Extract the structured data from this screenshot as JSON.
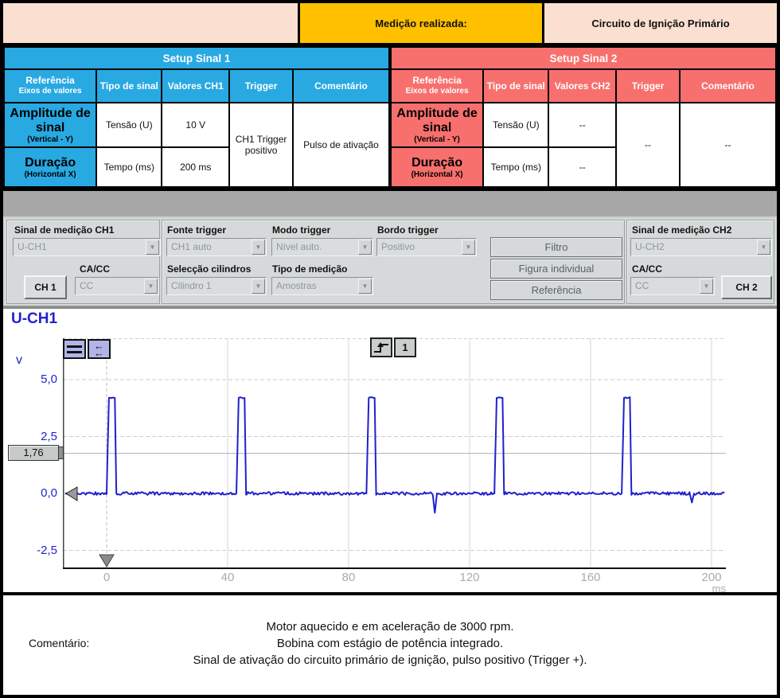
{
  "header": {
    "measurement_label": "Medição realizada:",
    "measurement_value": "Circuito de Ignição Primário"
  },
  "setup_tables": [
    {
      "title": "Setup Sinal 1",
      "col_ref": "Referência",
      "col_ref_sub": "Eixos de valores",
      "col_tipo": "Tipo de sinal",
      "col_valores": "Valores CH1",
      "col_trigger": "Trigger",
      "col_comment": "Comentário",
      "row1_ref": "Amplitude de sinal",
      "row1_ref_sub": "(Vertical - Y)",
      "row1_tipo": "Tensão (U)",
      "row1_valor": "10 V",
      "row2_ref": "Duração",
      "row2_ref_sub": "(Horizontal X)",
      "row2_tipo": "Tempo (ms)",
      "row2_valor": "200 ms",
      "trigger_value": "CH1 Trigger positivo",
      "comment_value": "Pulso de ativação"
    },
    {
      "title": "Setup Sinal 2",
      "col_ref": "Referência",
      "col_ref_sub": "Eixos de valores",
      "col_tipo": "Tipo de sinal",
      "col_valores": "Valores CH2",
      "col_trigger": "Trigger",
      "col_comment": "Comentário",
      "row1_ref": "Amplitude de sinal",
      "row1_ref_sub": "(Vertical - Y)",
      "row1_tipo": "Tensão (U)",
      "row1_valor": "--",
      "row2_ref": "Duração",
      "row2_ref_sub": "(Horizontal X)",
      "row2_tipo": "Tempo (ms)",
      "row2_valor": "--",
      "trigger_value": "--",
      "comment_value": "--"
    }
  ],
  "controls": {
    "ch1_label": "Sinal de medição CH1",
    "ch1_value": "U-CH1",
    "fonte_label": "Fonte trigger",
    "fonte_value": "CH1 auto",
    "modo_label": "Modo trigger",
    "modo_value": "Nível auto.",
    "bordo_label": "Bordo trigger",
    "bordo_value": "Positivo",
    "cacc1_label": "CA/CC",
    "cacc1_value": "CC",
    "ch1_button": "CH 1",
    "cilindros_label": "Selecção cilindros",
    "cilindros_value": "Cilindro 1",
    "medicao_label": "Tipo de medição",
    "medicao_value": "Amostras",
    "filtro_button": "Filtro",
    "figura_button": "Figura individual",
    "referencia_button": "Referência",
    "ch2_label": "Sinal de medição CH2",
    "ch2_value": "U-CH2",
    "cacc2_label": "CA/CC",
    "cacc2_value": "CC",
    "ch2_button": "CH 2"
  },
  "scope": {
    "title": "U-CH1",
    "y_unit": "v",
    "x_unit": "ms",
    "trigger_value": "1,76",
    "trigger_channel": "1"
  },
  "chart_data": {
    "type": "line",
    "title": "U-CH1",
    "xlabel": "ms",
    "ylabel": "v",
    "xlim": [
      -14.5,
      204.7
    ],
    "ylim": [
      -3.3,
      6.8
    ],
    "x_ticks": [
      0,
      40,
      80,
      120,
      160,
      200
    ],
    "x_tick_labels": [
      "0",
      "40",
      "80",
      "120",
      "160",
      "200"
    ],
    "y_ticks": [
      5.0,
      2.5,
      0.0,
      -2.5
    ],
    "y_tick_labels": [
      "5,0",
      "2,5",
      "0,0",
      "-2,5"
    ],
    "grid": true,
    "trigger_level": 1.76,
    "trigger_time": 0,
    "baseline_v": 0,
    "pulses": {
      "times_ms": [
        0,
        42.9,
        85.9,
        128.2,
        170.3
      ],
      "amplitude_v": 4.2,
      "width_ms": 3.2
    },
    "glitches": [
      {
        "t": 108.5,
        "v": -0.85
      },
      {
        "t": 193.5,
        "v": -0.4
      }
    ],
    "color": "#2121CC"
  },
  "colors": {
    "accent_blue": "#29A9E2",
    "accent_red": "#F7706E",
    "yellow": "#FFC000",
    "pink": "#FBE0D1",
    "waveform_blue": "#2121CC"
  },
  "comment": {
    "label": "Comentário:",
    "lines": [
      "Motor aquecido e em aceleração de 3000 rpm.",
      "Bobina com estágio de potência integrado.",
      "Sinal de ativação do circuito primário de ignição, pulso positivo (Trigger +)."
    ]
  }
}
